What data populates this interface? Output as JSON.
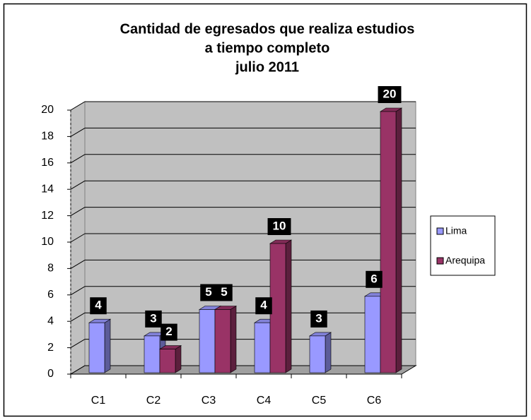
{
  "chart_data": {
    "type": "bar3d",
    "title": [
      "Cantidad de egresados que realiza estudios",
      "a tiempo completo",
      "julio 2011"
    ],
    "categories": [
      "C1",
      "C2",
      "C3",
      "C4",
      "C5",
      "C6"
    ],
    "series": [
      {
        "name": "Lima",
        "color": "#9999ff",
        "values": [
          4,
          3,
          5,
          4,
          3,
          6
        ]
      },
      {
        "name": "Arequipa",
        "color": "#993366",
        "values": [
          null,
          2,
          5,
          10,
          null,
          20
        ]
      }
    ],
    "ylim": [
      0,
      20
    ],
    "yticks": [
      0,
      2,
      4,
      6,
      8,
      10,
      12,
      14,
      16,
      18,
      20
    ],
    "grid": true,
    "legend": "right"
  }
}
